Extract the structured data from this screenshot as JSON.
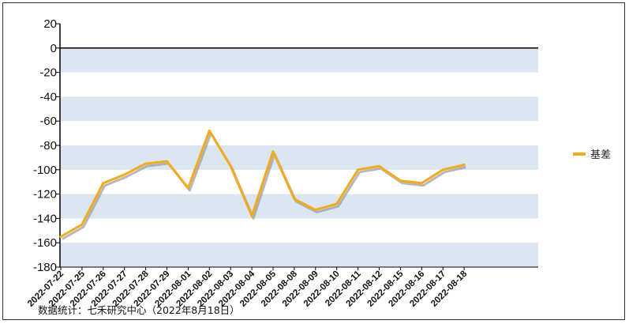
{
  "chart_data": {
    "type": "line",
    "categories": [
      "2022-07-22",
      "2022-07-25",
      "2022-07-26",
      "2022-07-27",
      "2022-07-28",
      "2022-07-29",
      "2022-08-01",
      "2022-08-02",
      "2022-08-03",
      "2022-08-04",
      "2022-08-05",
      "2022-08-08",
      "2022-08-09",
      "2022-08-10",
      "2022-08-11",
      "2022-08-12",
      "2022-08-15",
      "2022-08-16",
      "2022-08-17",
      "2022-08-18"
    ],
    "series": [
      {
        "name": "基差",
        "color": "#f0ab1e",
        "values": [
          -155,
          -145,
          -111,
          -104,
          -95,
          -93,
          -115,
          -68,
          -97,
          -138,
          -85,
          -124,
          -133,
          -128,
          -100,
          -97,
          -109,
          -111,
          -100,
          -96
        ]
      }
    ],
    "yticks": [
      20,
      0,
      -20,
      -40,
      -60,
      -80,
      -100,
      -120,
      -140,
      -160,
      -180
    ],
    "ylim": [
      -180,
      20
    ],
    "grid": "alternating horizontal bands",
    "band_color": "#dce6f0",
    "legend_position": "right",
    "source": "数据统计：七禾研究中心（2022年8月18日）"
  }
}
